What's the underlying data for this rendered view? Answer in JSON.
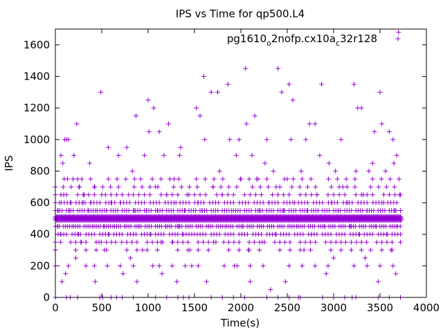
{
  "chart_data": {
    "type": "scatter",
    "title": "IPS vs Time for qp500.L4",
    "xlabel": "Time(s)",
    "ylabel": "IPS",
    "xlim": [
      0,
      4000
    ],
    "ylim": [
      0,
      1700
    ],
    "xticks": [
      0,
      500,
      1000,
      1500,
      2000,
      2500,
      3000,
      3500,
      4000
    ],
    "yticks": [
      0,
      200,
      400,
      600,
      800,
      1000,
      1200,
      1400,
      1600
    ],
    "legend_position": "top-right",
    "marker": "plus",
    "series": [
      {
        "name": "pg1610_o2nofp.cx10a_c32r128",
        "legend_parts": [
          {
            "text": "pg1610",
            "sub": false
          },
          {
            "text": "o",
            "sub": true
          },
          {
            "text": "2nofp.cx10a",
            "sub": false
          },
          {
            "text": "c",
            "sub": true
          },
          {
            "text": "32r128",
            "sub": false
          }
        ],
        "color": "#9400d3",
        "points": [
          [
            0,
            500
          ],
          [
            25,
            450
          ],
          [
            30,
            550
          ],
          [
            45,
            600
          ],
          [
            55,
            400
          ],
          [
            60,
            900
          ],
          [
            70,
            100
          ],
          [
            80,
            850
          ],
          [
            90,
            650
          ],
          [
            100,
            1000
          ],
          [
            110,
            150
          ],
          [
            120,
            1000
          ],
          [
            130,
            750
          ],
          [
            140,
            1000
          ],
          [
            150,
            550
          ],
          [
            160,
            0
          ],
          [
            170,
            600
          ],
          [
            180,
            450
          ],
          [
            200,
            900
          ],
          [
            210,
            500
          ],
          [
            220,
            250
          ],
          [
            230,
            1100
          ],
          [
            240,
            750
          ],
          [
            250,
            400
          ],
          [
            260,
            700
          ],
          [
            280,
            350
          ],
          [
            300,
            600
          ],
          [
            310,
            650
          ],
          [
            330,
            200
          ],
          [
            350,
            550
          ],
          [
            370,
            850
          ],
          [
            380,
            600
          ],
          [
            400,
            450
          ],
          [
            420,
            700
          ],
          [
            430,
            100
          ],
          [
            450,
            550
          ],
          [
            470,
            350
          ],
          [
            490,
            1300
          ],
          [
            500,
            650
          ],
          [
            510,
            0
          ],
          [
            520,
            450
          ],
          [
            530,
            300
          ],
          [
            550,
            550
          ],
          [
            570,
            950
          ],
          [
            580,
            400
          ],
          [
            600,
            600
          ],
          [
            620,
            450
          ],
          [
            650,
            350
          ],
          [
            660,
            0
          ],
          [
            680,
            900
          ],
          [
            700,
            600
          ],
          [
            730,
            150
          ],
          [
            750,
            450
          ],
          [
            770,
            950
          ],
          [
            790,
            650
          ],
          [
            810,
            250
          ],
          [
            830,
            800
          ],
          [
            850,
            550
          ],
          [
            870,
            1150
          ],
          [
            880,
            100
          ],
          [
            900,
            450
          ],
          [
            920,
            750
          ],
          [
            940,
            300
          ],
          [
            960,
            900
          ],
          [
            980,
            550
          ],
          [
            1000,
            1250
          ],
          [
            1010,
            1050
          ],
          [
            1030,
            400
          ],
          [
            1050,
            200
          ],
          [
            1060,
            1200
          ],
          [
            1080,
            700
          ],
          [
            1100,
            550
          ],
          [
            1120,
            1050
          ],
          [
            1140,
            350
          ],
          [
            1150,
            150
          ],
          [
            1170,
            900
          ],
          [
            1190,
            450
          ],
          [
            1200,
            650
          ],
          [
            1220,
            1100
          ],
          [
            1240,
            500
          ],
          [
            1260,
            350
          ],
          [
            1280,
            750
          ],
          [
            1300,
            600
          ],
          [
            1310,
            100
          ],
          [
            1330,
            450
          ],
          [
            1340,
            900
          ],
          [
            1350,
            950
          ],
          [
            1370,
            400
          ],
          [
            1380,
            0
          ],
          [
            1400,
            550
          ],
          [
            1420,
            650
          ],
          [
            1450,
            300
          ],
          [
            1470,
            200
          ],
          [
            1500,
            400
          ],
          [
            1520,
            1200
          ],
          [
            1540,
            600
          ],
          [
            1560,
            1150
          ],
          [
            1580,
            550
          ],
          [
            1600,
            1400
          ],
          [
            1610,
            1000
          ],
          [
            1630,
            100
          ],
          [
            1650,
            450
          ],
          [
            1680,
            1300
          ],
          [
            1700,
            700
          ],
          [
            1730,
            350
          ],
          [
            1750,
            1300
          ],
          [
            1770,
            800
          ],
          [
            1800,
            650
          ],
          [
            1830,
            450
          ],
          [
            1860,
            1350
          ],
          [
            1880,
            1000
          ],
          [
            1900,
            550
          ],
          [
            1930,
            200
          ],
          [
            1950,
            900
          ],
          [
            1980,
            1000
          ],
          [
            2000,
            750
          ],
          [
            2020,
            450
          ],
          [
            2050,
            1450
          ],
          [
            2060,
            1100
          ],
          [
            2080,
            300
          ],
          [
            2100,
            100
          ],
          [
            2120,
            900
          ],
          [
            2150,
            1150
          ],
          [
            2170,
            750
          ],
          [
            2200,
            550
          ],
          [
            2230,
            350
          ],
          [
            2260,
            850
          ],
          [
            2280,
            1000
          ],
          [
            2300,
            600
          ],
          [
            2320,
            50
          ],
          [
            2350,
            800
          ],
          [
            2380,
            400
          ],
          [
            2400,
            1450
          ],
          [
            2420,
            700
          ],
          [
            2440,
            1300
          ],
          [
            2460,
            550
          ],
          [
            2480,
            100
          ],
          [
            2500,
            750
          ],
          [
            2520,
            1350
          ],
          [
            2540,
            1000
          ],
          [
            2560,
            1250
          ],
          [
            2580,
            600
          ],
          [
            2600,
            450
          ],
          [
            2620,
            0
          ],
          [
            2650,
            800
          ],
          [
            2680,
            300
          ],
          [
            2700,
            1000
          ],
          [
            2720,
            550
          ],
          [
            2740,
            1100
          ],
          [
            2760,
            400
          ],
          [
            2800,
            1100
          ],
          [
            2820,
            650
          ],
          [
            2850,
            900
          ],
          [
            2870,
            1350
          ],
          [
            2900,
            450
          ],
          [
            2920,
            150
          ],
          [
            2950,
            850
          ],
          [
            2980,
            600
          ],
          [
            3000,
            250
          ],
          [
            3020,
            800
          ],
          [
            3050,
            550
          ],
          [
            3080,
            1000
          ],
          [
            3100,
            700
          ],
          [
            3130,
            350
          ],
          [
            3150,
            600
          ],
          [
            3180,
            450
          ],
          [
            3200,
            0
          ],
          [
            3220,
            1350
          ],
          [
            3240,
            800
          ],
          [
            3260,
            1200
          ],
          [
            3280,
            400
          ],
          [
            3300,
            1200
          ],
          [
            3320,
            650
          ],
          [
            3340,
            250
          ],
          [
            3360,
            550
          ],
          [
            3380,
            800
          ],
          [
            3400,
            300
          ],
          [
            3420,
            850
          ],
          [
            3440,
            1050
          ],
          [
            3460,
            450
          ],
          [
            3480,
            100
          ],
          [
            3500,
            1300
          ],
          [
            3520,
            1100
          ],
          [
            3540,
            600
          ],
          [
            3560,
            800
          ],
          [
            3580,
            400
          ],
          [
            3600,
            1050
          ],
          [
            3620,
            300
          ],
          [
            3640,
            1000
          ],
          [
            3650,
            850
          ],
          [
            3660,
            550
          ],
          [
            3670,
            150
          ],
          [
            3680,
            900
          ],
          [
            3690,
            450
          ],
          [
            3700,
            1680
          ],
          [
            3710,
            650
          ],
          [
            3720,
            350
          ]
        ],
        "bands": [
          {
            "x_range": [
              0,
              3730
            ],
            "y": 500,
            "step": 8
          },
          {
            "x_range": [
              0,
              3730
            ],
            "y": 510,
            "step": 9
          },
          {
            "x_range": [
              0,
              3730
            ],
            "y": 490,
            "step": 10
          },
          {
            "x_range": [
              0,
              3730
            ],
            "y": 450,
            "step": 22
          },
          {
            "x_range": [
              0,
              3730
            ],
            "y": 550,
            "step": 24
          },
          {
            "x_range": [
              0,
              3730
            ],
            "y": 400,
            "step": 30
          },
          {
            "x_range": [
              0,
              3730
            ],
            "y": 600,
            "step": 32
          },
          {
            "x_range": [
              0,
              3730
            ],
            "y": 350,
            "step": 55
          },
          {
            "x_range": [
              0,
              3730
            ],
            "y": 650,
            "step": 60
          },
          {
            "x_range": [
              0,
              3730
            ],
            "y": 700,
            "step": 85
          },
          {
            "x_range": [
              0,
              3730
            ],
            "y": 750,
            "step": 95
          },
          {
            "x_range": [
              0,
              3730
            ],
            "y": 300,
            "step": 110
          },
          {
            "x_range": [
              0,
              3730
            ],
            "y": 200,
            "step": 140
          },
          {
            "x_range": [
              0,
              3730
            ],
            "y": 0,
            "step": 120
          }
        ]
      }
    ]
  }
}
